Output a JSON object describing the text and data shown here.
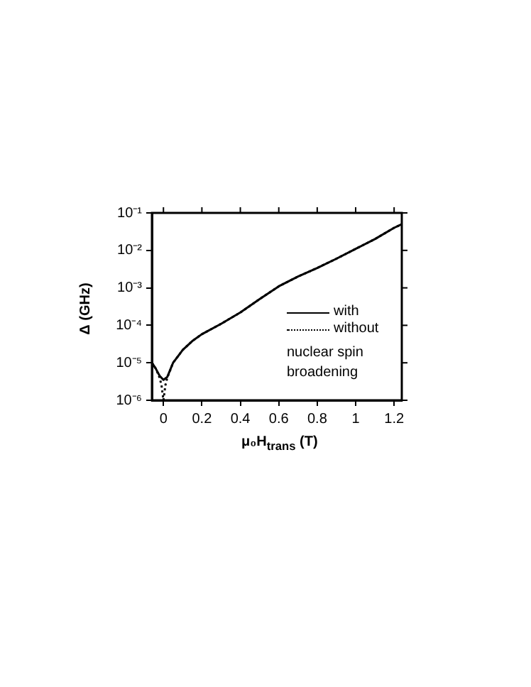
{
  "chart_data": {
    "type": "line",
    "xlabel": "μ₀H$_{trans}$ (T)",
    "ylabel": "Δ (GHz)",
    "log": "y",
    "xlim": [
      -0.06,
      1.24
    ],
    "xticks": [
      0,
      0.2,
      0.4,
      0.6,
      0.8,
      1,
      1.2
    ],
    "ylim": [
      1e-06,
      0.1
    ],
    "yticks": [
      {
        "value": 1e-06,
        "label": "10⁻⁶"
      },
      {
        "value": 1e-05,
        "label": "10⁻⁵"
      },
      {
        "value": 0.0001,
        "label": "10⁻⁴"
      },
      {
        "value": 0.001,
        "label": "10⁻³"
      },
      {
        "value": 0.01,
        "label": "10⁻²"
      },
      {
        "value": 0.1,
        "label": "10⁻¹"
      }
    ],
    "grid": false,
    "legend": "right",
    "legend_title": "nuclear spin broadening",
    "marker": "none",
    "series": [
      {
        "name": "with",
        "color": "#000000",
        "line_style": "solid",
        "x": [
          -0.06,
          -0.04,
          -0.02,
          0,
          0.02,
          0.05,
          0.1,
          0.15,
          0.2,
          0.3,
          0.4,
          0.5,
          0.6,
          0.7,
          0.8,
          0.9,
          1,
          1.1,
          1.2,
          1.24
        ],
        "values": [
          1e-05,
          7e-06,
          4.5e-06,
          3.5e-06,
          4.2e-06,
          1e-05,
          2.2e-05,
          3.8e-05,
          5.8e-05,
          0.00011,
          0.00022,
          0.0005,
          0.0011,
          0.002,
          0.0034,
          0.006,
          0.011,
          0.02,
          0.04,
          0.05
        ]
      },
      {
        "name": "without",
        "color": "#000000",
        "line_style": "dotted",
        "x": [
          -0.06,
          -0.04,
          -0.02,
          -0.01,
          0,
          0.01,
          0.02,
          0.05,
          0.1,
          0.15,
          0.2,
          0.3,
          0.4,
          0.5,
          0.6,
          0.7,
          0.8,
          0.9,
          1,
          1.1,
          1.2,
          1.24
        ],
        "values": [
          1e-05,
          7e-06,
          4e-06,
          2.5e-06,
          1e-06,
          2.5e-06,
          4e-06,
          1e-05,
          2.2e-05,
          3.8e-05,
          5.8e-05,
          0.00011,
          0.00022,
          0.0005,
          0.0011,
          0.002,
          0.0034,
          0.006,
          0.011,
          0.02,
          0.04,
          0.05
        ]
      }
    ]
  }
}
